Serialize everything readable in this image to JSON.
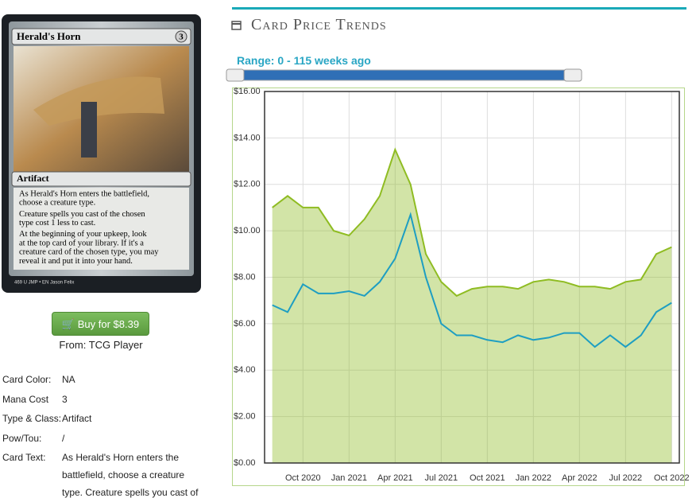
{
  "card": {
    "name": "Herald's Horn",
    "mana": "3",
    "type_line": "Artifact",
    "rules": [
      "As Herald's Horn enters the battlefield,",
      "choose a creature type.",
      "Creature spells you cast of the chosen",
      "type cost 1 less to cast.",
      "At the beginning of your upkeep, look",
      "at the top card of your library. If it's a",
      "creature card of the chosen type, you may",
      "reveal it and put it into your hand."
    ],
    "footer": "469  U  JMP • EN  Jason Felix",
    "buy": "Buy for $8.39",
    "from": "From: TCG Player",
    "details": [
      [
        "Card Color:",
        "NA"
      ],
      [
        "Mana Cost",
        "3"
      ],
      [
        "Type & Class:",
        "Artifact"
      ],
      [
        "Pow/Tou:",
        "/"
      ]
    ],
    "text_label": "Card Text:",
    "text_lines": [
      "As Herald's Horn enters the",
      "battlefield, choose a creature",
      "type. Creature spells you cast of"
    ]
  },
  "header": {
    "title": "Card Price Trends",
    "range": "Range: 0 - 115 weeks ago"
  },
  "chart_data": {
    "type": "line",
    "categories": [
      null,
      null,
      "Oct 2020",
      null,
      null,
      "Jan 2021",
      null,
      null,
      "Apr 2021",
      null,
      null,
      "Jul 2021",
      null,
      null,
      "Oct 2021",
      null,
      null,
      "Jan 2022",
      null,
      null,
      "Apr 2022",
      null,
      null,
      "Jul 2022",
      null,
      null,
      "Oct 2022"
    ],
    "series": [
      {
        "color": "#8fbc22",
        "area": true,
        "values": [
          11,
          11.5,
          11,
          11,
          10,
          9.8,
          10.5,
          11.5,
          13.5,
          12,
          9,
          7.8,
          7.2,
          7.5,
          7.6,
          7.6,
          7.5,
          7.8,
          7.9,
          7.8,
          7.6,
          7.6,
          7.5,
          7.8,
          7.9,
          9,
          9.3
        ]
      },
      {
        "color": "#1e9ec2",
        "area": false,
        "values": [
          6.8,
          6.5,
          7.7,
          7.3,
          7.3,
          7.4,
          7.2,
          7.8,
          8.8,
          10.7,
          8,
          6,
          5.5,
          5.5,
          5.3,
          5.2,
          5.5,
          5.3,
          5.4,
          5.6,
          5.6,
          5.0,
          5.5,
          5.0,
          5.5,
          6.5,
          6.9
        ]
      }
    ],
    "ylim": [
      0,
      16
    ],
    "yticks": [
      {
        "value": 0,
        "label": "$0.00"
      },
      {
        "value": 2,
        "label": "$2.00"
      },
      {
        "value": 4,
        "label": "$4.00"
      },
      {
        "value": 6,
        "label": "$6.00"
      },
      {
        "value": 8,
        "label": "$8.00"
      },
      {
        "value": 10,
        "label": "$10.00"
      },
      {
        "value": 12,
        "label": "$12.00"
      },
      {
        "value": 14,
        "label": "$14.00"
      },
      {
        "value": 16,
        "label": "$16.00"
      }
    ],
    "grid": true
  }
}
